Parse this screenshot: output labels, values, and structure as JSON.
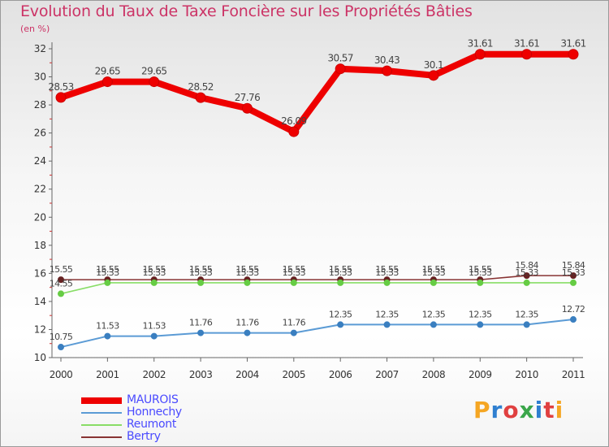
{
  "header": {
    "title": "Evolution du Taux de Taxe Foncière sur les Propriétés Bâties",
    "unit": "(en %)"
  },
  "logo": {
    "text": "Proxiti",
    "letters": [
      "P",
      "r",
      "o",
      "x",
      "i",
      "t",
      "i"
    ]
  },
  "chart_data": {
    "type": "line",
    "title": "Evolution du Taux de Taxe Foncière sur les Propriétés Bâties",
    "ylabel": "(en %)",
    "xlabel": "",
    "x": [
      "2000",
      "2001",
      "2002",
      "2003",
      "2004",
      "2005",
      "2006",
      "2007",
      "2008",
      "2009",
      "2010",
      "2011"
    ],
    "ylim": [
      10,
      32
    ],
    "yticks": [
      10,
      12,
      14,
      16,
      18,
      20,
      22,
      24,
      26,
      28,
      30,
      32
    ],
    "grid": false,
    "legend_position": "bottom-left",
    "series": [
      {
        "name": "MAUROIS",
        "color": "#ee0000",
        "values": [
          28.53,
          29.65,
          29.65,
          28.52,
          27.76,
          26.09,
          30.57,
          30.43,
          30.1,
          31.61,
          31.61,
          31.61
        ],
        "labels": [
          "28.53",
          "29.65",
          "29.65",
          "28.52",
          "27.76",
          "26.09",
          "30.57",
          "30.43",
          "30.1",
          "31.61",
          "31.61",
          "31.61"
        ]
      },
      {
        "name": "Honnechy",
        "color": "#5b9bd5",
        "values": [
          10.75,
          11.53,
          11.53,
          11.76,
          11.76,
          11.76,
          12.35,
          12.35,
          12.35,
          12.35,
          12.35,
          12.72
        ],
        "labels": [
          "10.75",
          "11.53",
          "11.53",
          "11.76",
          "11.76",
          "11.76",
          "12.35",
          "12.35",
          "12.35",
          "12.35",
          "12.35",
          "12.72"
        ]
      },
      {
        "name": "Reumont",
        "color": "#88dd66",
        "values": [
          14.55,
          15.33,
          15.33,
          15.33,
          15.33,
          15.33,
          15.33,
          15.33,
          15.33,
          15.33,
          15.33,
          15.33
        ],
        "labels": [
          "14.55",
          "15.33",
          "15.33",
          "15.33",
          "15.33",
          "15.33",
          "15.33",
          "15.33",
          "15.33",
          "15.33",
          "15.33",
          "15.33"
        ]
      },
      {
        "name": "Bertry",
        "color": "#883333",
        "values": [
          15.55,
          15.55,
          15.55,
          15.55,
          15.55,
          15.55,
          15.55,
          15.55,
          15.55,
          15.55,
          15.84,
          15.84
        ],
        "labels": [
          "15.55",
          "15.55",
          "15.55",
          "15.55",
          "15.55",
          "15.55",
          "15.55",
          "15.55",
          "15.55",
          "15.55",
          "15.84",
          "15.84"
        ]
      }
    ]
  }
}
